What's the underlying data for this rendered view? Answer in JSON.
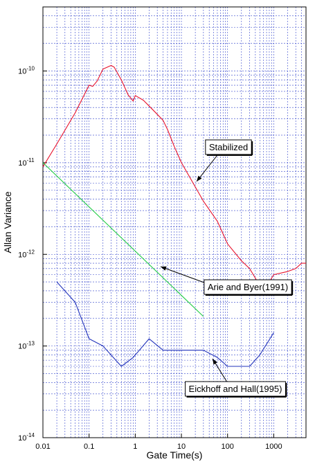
{
  "chart_data": {
    "type": "line",
    "title": "",
    "xlabel": "Gate Time(s)",
    "ylabel": "Allan Variance",
    "x_scale": "log",
    "y_scale": "log",
    "xlim": [
      0.01,
      5000
    ],
    "ylim": [
      1e-14,
      5e-10
    ],
    "grid": true,
    "x_ticks": [
      {
        "value": 0.01,
        "label": "0.01"
      },
      {
        "value": 0.1,
        "label": "0.1"
      },
      {
        "value": 1,
        "label": "1"
      },
      {
        "value": 10,
        "label": "10"
      },
      {
        "value": 100,
        "label": "100"
      },
      {
        "value": 1000,
        "label": "1000"
      }
    ],
    "y_ticks": [
      {
        "value": 1e-14,
        "base": "10",
        "exp": "-14"
      },
      {
        "value": 1e-13,
        "base": "10",
        "exp": "-13"
      },
      {
        "value": 1e-12,
        "base": "10",
        "exp": "-12"
      },
      {
        "value": 1e-11,
        "base": "10",
        "exp": "-11"
      },
      {
        "value": 1e-10,
        "base": "10",
        "exp": "-10"
      }
    ],
    "series": [
      {
        "name": "Stabilized",
        "color": "#e8102a",
        "x": [
          0.01,
          0.02,
          0.05,
          0.09,
          0.1,
          0.12,
          0.15,
          0.2,
          0.3,
          0.35,
          0.5,
          0.7,
          0.9,
          1.0,
          1.5,
          2.5,
          4.0,
          5.0,
          7.0,
          10,
          15,
          30,
          60,
          100,
          200,
          300,
          400,
          500,
          800,
          1000,
          2000,
          3000,
          4000,
          5000
        ],
        "y": [
          9e-12,
          1.6e-11,
          3.5e-11,
          6.3e-11,
          7e-11,
          6.8e-11,
          7.8e-11,
          1.05e-10,
          1.15e-10,
          1.1e-10,
          8e-11,
          5.5e-11,
          4.7e-11,
          5.4e-11,
          4.8e-11,
          3.7e-11,
          2.9e-11,
          2.3e-11,
          1.5e-11,
          1e-11,
          7e-12,
          3.8e-12,
          2.3e-12,
          1.3e-12,
          8.5e-13,
          7e-13,
          5.5e-13,
          4.5e-13,
          5e-13,
          6e-13,
          6.5e-13,
          7e-13,
          8e-13,
          8e-13
        ]
      },
      {
        "name": "Arie and Byer(1991)",
        "color": "#22cc44",
        "x": [
          0.01,
          30
        ],
        "y": [
          1e-11,
          2.1e-13
        ]
      },
      {
        "name": "Eickhoff and Hall(1995)",
        "color": "#2233bb",
        "x": [
          0.02,
          0.05,
          0.1,
          0.2,
          0.5,
          0.9,
          2.0,
          4.0,
          10,
          30,
          60,
          100,
          150,
          300,
          500,
          1000
        ],
        "y": [
          5e-13,
          3e-13,
          1.2e-13,
          1e-13,
          6e-14,
          7.5e-14,
          1.2e-13,
          9e-14,
          9e-14,
          9e-14,
          7.5e-14,
          6e-14,
          6e-14,
          6e-14,
          8e-14,
          1.4e-13
        ]
      }
    ],
    "annotations": [
      {
        "text": "Stabilized"
      },
      {
        "text": "Arie and Byer(1991)"
      },
      {
        "text": "Eickhoff and Hall(1995)"
      }
    ]
  }
}
